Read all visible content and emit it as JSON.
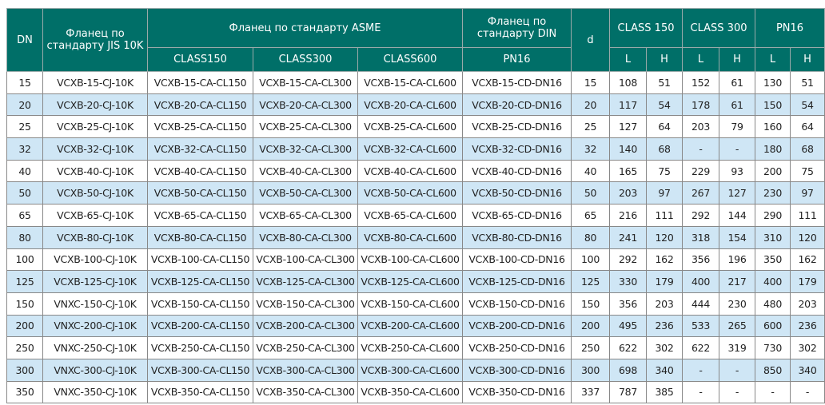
{
  "header": {
    "dn": "DN",
    "jis": "Фланец по стандарту JIS 10K",
    "asme": "Фланец по стандарту ASME",
    "din": "Фланец по стандарту DIN",
    "d": "d",
    "class150": "CLASS 150",
    "class300": "CLASS 300",
    "pn16": "PN16",
    "asme_cols": [
      "CLASS150",
      "CLASS300",
      "CLASS600"
    ],
    "din_col": "PN16",
    "L": "L",
    "H": "H"
  },
  "colors": {
    "header": "#006f68",
    "alt_row": "#cfe6f5"
  },
  "rows": [
    [
      "15",
      "VCXB-15-CJ-10K",
      "VCXB-15-CA-CL150",
      "VCXB-15-CA-CL300",
      "VCXB-15-CA-CL600",
      "VCXB-15-CD-DN16",
      "15",
      "108",
      "51",
      "152",
      "61",
      "130",
      "51"
    ],
    [
      "20",
      "VCXB-20-CJ-10K",
      "VCXB-20-CA-CL150",
      "VCXB-20-CA-CL300",
      "VCXB-20-CA-CL600",
      "VCXB-20-CD-DN16",
      "20",
      "117",
      "54",
      "178",
      "61",
      "150",
      "54"
    ],
    [
      "25",
      "VCXB-25-CJ-10K",
      "VCXB-25-CA-CL150",
      "VCXB-25-CA-CL300",
      "VCXB-25-CA-CL600",
      "VCXB-25-CD-DN16",
      "25",
      "127",
      "64",
      "203",
      "79",
      "160",
      "64"
    ],
    [
      "32",
      "VCXB-32-CJ-10K",
      "VCXB-32-CA-CL150",
      "VCXB-32-CA-CL300",
      "VCXB-32-CA-CL600",
      "VCXB-32-CD-DN16",
      "32",
      "140",
      "68",
      "-",
      "-",
      "180",
      "68"
    ],
    [
      "40",
      "VCXB-40-CJ-10K",
      "VCXB-40-CA-CL150",
      "VCXB-40-CA-CL300",
      "VCXB-40-CA-CL600",
      "VCXB-40-CD-DN16",
      "40",
      "165",
      "75",
      "229",
      "93",
      "200",
      "75"
    ],
    [
      "50",
      "VCXB-50-CJ-10K",
      "VCXB-50-CA-CL150",
      "VCXB-50-CA-CL300",
      "VCXB-50-CA-CL600",
      "VCXB-50-CD-DN16",
      "50",
      "203",
      "97",
      "267",
      "127",
      "230",
      "97"
    ],
    [
      "65",
      "VCXB-65-CJ-10K",
      "VCXB-65-CA-CL150",
      "VCXB-65-CA-CL300",
      "VCXB-65-CA-CL600",
      "VCXB-65-CD-DN16",
      "65",
      "216",
      "111",
      "292",
      "144",
      "290",
      "111"
    ],
    [
      "80",
      "VCXB-80-CJ-10K",
      "VCXB-80-CA-CL150",
      "VCXB-80-CA-CL300",
      "VCXB-80-CA-CL600",
      "VCXB-80-CD-DN16",
      "80",
      "241",
      "120",
      "318",
      "154",
      "310",
      "120"
    ],
    [
      "100",
      "VCXB-100-CJ-10K",
      "VCXB-100-CA-CL150",
      "VCXB-100-CA-CL300",
      "VCXB-100-CA-CL600",
      "VCXB-100-CD-DN16",
      "100",
      "292",
      "162",
      "356",
      "196",
      "350",
      "162"
    ],
    [
      "125",
      "VCXB-125-CJ-10K",
      "VCXB-125-CA-CL150",
      "VCXB-125-CA-CL300",
      "VCXB-125-CA-CL600",
      "VCXB-125-CD-DN16",
      "125",
      "330",
      "179",
      "400",
      "217",
      "400",
      "179"
    ],
    [
      "150",
      "VNXC-150-CJ-10K",
      "VCXB-150-CA-CL150",
      "VCXB-150-CA-CL300",
      "VCXB-150-CA-CL600",
      "VCXB-150-CD-DN16",
      "150",
      "356",
      "203",
      "444",
      "230",
      "480",
      "203"
    ],
    [
      "200",
      "VNXC-200-CJ-10K",
      "VCXB-200-CA-CL150",
      "VCXB-200-CA-CL300",
      "VCXB-200-CA-CL600",
      "VCXB-200-CD-DN16",
      "200",
      "495",
      "236",
      "533",
      "265",
      "600",
      "236"
    ],
    [
      "250",
      "VNXC-250-CJ-10K",
      "VCXB-250-CA-CL150",
      "VCXB-250-CA-CL300",
      "VCXB-250-CA-CL600",
      "VCXB-250-CD-DN16",
      "250",
      "622",
      "302",
      "622",
      "319",
      "730",
      "302"
    ],
    [
      "300",
      "VNXC-300-CJ-10K",
      "VCXB-300-CA-CL150",
      "VCXB-300-CA-CL300",
      "VCXB-300-CA-CL600",
      "VCXB-300-CD-DN16",
      "300",
      "698",
      "340",
      "-",
      "-",
      "850",
      "340"
    ],
    [
      "350",
      "VNXC-350-CJ-10K",
      "VCXB-350-CA-CL150",
      "VCXB-350-CA-CL300",
      "VCXB-350-CA-CL600",
      "VCXB-350-CD-DN16",
      "337",
      "787",
      "385",
      "-",
      "-",
      "-",
      "-"
    ]
  ]
}
